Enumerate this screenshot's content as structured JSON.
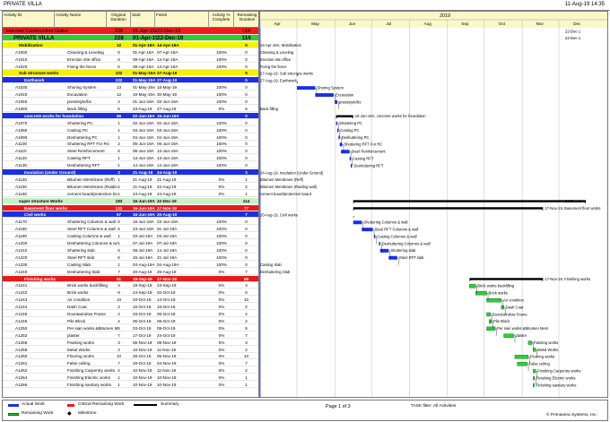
{
  "top_bar": {
    "title": "PRIVATE VILLA",
    "date": "11-Aug-19 14:35"
  },
  "columns": {
    "activity_id": "Activity ID",
    "activity_name": "Activity Name",
    "orig_dur": "Original Duration",
    "start": "Start",
    "finish": "Finish",
    "pct": "Activity % Complete",
    "rem": "Remaining Duration"
  },
  "timescale": {
    "year": "2019",
    "months": [
      "Apr",
      "May",
      "Jun",
      "Jul",
      "Aug",
      "Sep",
      "Oct",
      "Nov",
      "Dec"
    ]
  },
  "rows": [
    {
      "kind": "hdr-red",
      "id": "",
      "name": "Harvant Construction Dubai",
      "dur": "228",
      "start": "01-Apr-19A",
      "finish": "22-Dec-19",
      "pct": "",
      "rem": "114"
    },
    {
      "kind": "hdr-green",
      "id": "",
      "name": "PRIVATE VILLA",
      "dur": "228",
      "start": "01-Apr-19A",
      "finish": "22-Dec-19",
      "pct": "",
      "rem": "114"
    },
    {
      "kind": "hdr-yellow",
      "id": "",
      "name": "Mobilization",
      "dur": "12",
      "start": "01-Apr-19A",
      "finish": "14-Apr-19A",
      "pct": "",
      "rem": "0"
    },
    {
      "kind": "act",
      "id": "A1000",
      "name": "Cleaning & Leveling",
      "dur": "6",
      "start": "01-Apr-19A",
      "finish": "07-Apr-19A",
      "pct": "100%",
      "rem": "0"
    },
    {
      "kind": "act",
      "id": "A1010",
      "name": "Erection site office",
      "dur": "6",
      "start": "08-Apr-19A",
      "finish": "14-Apr-19A",
      "pct": "100%",
      "rem": "0"
    },
    {
      "kind": "act",
      "id": "A1020",
      "name": "Fixing the fence",
      "dur": "6",
      "start": "08-Apr-19A",
      "finish": "14-Apr-19A",
      "pct": "100%",
      "rem": "0"
    },
    {
      "kind": "hdr-yellow",
      "id": "",
      "name": "Sub structure works",
      "dur": "102",
      "start": "01-May-19A",
      "finish": "27-Aug-19",
      "pct": "",
      "rem": "5"
    },
    {
      "kind": "hdr-blue",
      "id": "",
      "name": "Earthwork",
      "dur": "102",
      "start": "01-May-19A",
      "finish": "27-Aug-19",
      "pct": "",
      "rem": "5"
    },
    {
      "kind": "act",
      "id": "A1030",
      "name": "Shoring System",
      "dur": "13",
      "start": "01-May-19A",
      "finish": "15-May-19",
      "pct": "100%",
      "rem": "0"
    },
    {
      "kind": "act",
      "id": "A1040",
      "name": "Excavation",
      "dur": "12",
      "start": "16-May-19A",
      "finish": "30-May-19",
      "pct": "100%",
      "rem": "0"
    },
    {
      "kind": "act",
      "id": "A1050",
      "name": "pressstyle/bs",
      "dur": "2",
      "start": "01-Jun-19A",
      "finish": "02-Jun-19A",
      "pct": "100%",
      "rem": "0"
    },
    {
      "kind": "act",
      "id": "A1060",
      "name": "Back filling",
      "dur": "5",
      "start": "23-Aug-19",
      "finish": "27-Aug-19",
      "pct": "0%",
      "rem": "5"
    },
    {
      "kind": "hdr-blue",
      "id": "",
      "name": "concrete works for foundation",
      "dur": "56",
      "start": "02-Jun-19A",
      "finish": "15-Jun-19A",
      "pct": "",
      "rem": "0"
    },
    {
      "kind": "act",
      "id": "A1070",
      "name": "Shuttering PC",
      "dur": "1",
      "start": "02-Jun-19A",
      "finish": "02-Jun-19A",
      "pct": "100%",
      "rem": "0"
    },
    {
      "kind": "act",
      "id": "A1080",
      "name": "Casting PC",
      "dur": "1",
      "start": "03-Jun-19A",
      "finish": "03-Jun-19A",
      "pct": "100%",
      "rem": "0"
    },
    {
      "kind": "act",
      "id": "A1090",
      "name": "Deshuttering PC",
      "dur": "1",
      "start": "04-Jun-19A",
      "finish": "04-Jun-19A",
      "pct": "100%",
      "rem": "0"
    },
    {
      "kind": "act",
      "id": "A1100",
      "name": "Shuttering RFT For RC",
      "dur": "2",
      "start": "05-Jun-19A",
      "finish": "06-Jun-19A",
      "pct": "100%",
      "rem": "0"
    },
    {
      "kind": "act",
      "id": "A1110",
      "name": "Steel Reinforcement",
      "dur": "6",
      "start": "06-Jun-19A",
      "finish": "12-Jun-19A",
      "pct": "100%",
      "rem": "0"
    },
    {
      "kind": "act",
      "id": "A1120",
      "name": "Casting RFT",
      "dur": "1",
      "start": "13-Jun-19A",
      "finish": "13-Jun-19A",
      "pct": "100%",
      "rem": "0"
    },
    {
      "kind": "act",
      "id": "A1130",
      "name": "Deshuttering RFT",
      "dur": "1",
      "start": "14-Jun-19A",
      "finish": "14-Jun-19A",
      "pct": "100%",
      "rem": "0"
    },
    {
      "kind": "hdr-blue",
      "id": "",
      "name": "Insulation (Under Ground)",
      "dur": "3",
      "start": "21-Aug-19",
      "finish": "24-Aug-19",
      "pct": "",
      "rem": "3"
    },
    {
      "kind": "act",
      "id": "A1140",
      "name": "Bitumen Membrane (Reff)",
      "dur": "1",
      "start": "21-Aug-19",
      "finish": "21-Aug-19",
      "pct": "0%",
      "rem": "1"
    },
    {
      "kind": "act",
      "id": "A1150",
      "name": "Bitumen Membrane (Raiding",
      "dur": "2",
      "start": "21-Aug-19",
      "finish": "22-Aug-19",
      "pct": "0%",
      "rem": "2"
    },
    {
      "kind": "act",
      "id": "A1160",
      "name": "cement board/protection boa",
      "dur": "1",
      "start": "24-Aug-19",
      "finish": "24-Aug-19",
      "pct": "0%",
      "rem": "1"
    },
    {
      "kind": "hdr-lgreen",
      "id": "",
      "name": "super structure Works",
      "dur": "183",
      "start": "16-Jun-19A",
      "finish": "22-Dec-19",
      "pct": "",
      "rem": "114"
    },
    {
      "kind": "hdr-red2",
      "id": "",
      "name": "Basement floor works",
      "dur": "133",
      "start": "16-Jun-19A",
      "finish": "17-Nov-19",
      "pct": "",
      "rem": "77"
    },
    {
      "kind": "hdr-blue",
      "id": "",
      "name": "Civil works",
      "dur": "57",
      "start": "16-Jun-19A",
      "finish": "20-Aug-19",
      "pct": "",
      "rem": "7"
    },
    {
      "kind": "act",
      "id": "A1170",
      "name": "Shuttering Columns & wall",
      "dur": "6",
      "start": "16-Jun-19A",
      "finish": "22-Jun-19A",
      "pct": "100%",
      "rem": "0"
    },
    {
      "kind": "act",
      "id": "A1180",
      "name": "Steel RFT Columns & wall",
      "dur": "6",
      "start": "23-Jun-19A",
      "finish": "01-Jul-19A",
      "pct": "100%",
      "rem": "0"
    },
    {
      "kind": "act",
      "id": "A1190",
      "name": "Casting Columns & wall",
      "dur": "1",
      "start": "03-Jul-19A",
      "finish": "03-Jul-19A",
      "pct": "100%",
      "rem": "0"
    },
    {
      "kind": "act",
      "id": "A1200",
      "name": "Deshuttering Columns & wall",
      "dur": "1",
      "start": "07-Jul-19A",
      "finish": "07-Jul-19A",
      "pct": "100%",
      "rem": "0"
    },
    {
      "kind": "act",
      "id": "A1210",
      "name": "Shuttering slab",
      "dur": "6",
      "start": "08-Jul-19A",
      "finish": "14-Jul-19A",
      "pct": "100%",
      "rem": "0"
    },
    {
      "kind": "act",
      "id": "A1220",
      "name": "Steel RFT slab",
      "dur": "6",
      "start": "15-Jul-19A",
      "finish": "21-Jul-19A",
      "pct": "100%",
      "rem": "0"
    },
    {
      "kind": "act",
      "id": "A1230",
      "name": "Casting Slab",
      "dur": "1",
      "start": "04-Aug-19A",
      "finish": "04-Aug-19A",
      "pct": "100%",
      "rem": "0"
    },
    {
      "kind": "act",
      "id": "A1240",
      "name": "Deshuttering Slab",
      "dur": "7",
      "start": "20-Aug-19",
      "finish": "26-Aug-19",
      "pct": "0%",
      "rem": "7"
    },
    {
      "kind": "hdr-red2",
      "id": "",
      "name": "Finishing works",
      "dur": "91",
      "start": "19-Sep-19",
      "finish": "17-Nov-19",
      "pct": "",
      "rem": "59"
    },
    {
      "kind": "act",
      "id": "A1241",
      "name": "Brick works backfilling",
      "dur": "4",
      "start": "19-Sep-19",
      "finish": "23-Sep-19",
      "pct": "0%",
      "rem": "4"
    },
    {
      "kind": "act",
      "id": "A1242",
      "name": "Brick works",
      "dur": "8",
      "start": "24-Sep-19",
      "finish": "02-Oct-19",
      "pct": "0%",
      "rem": "8"
    },
    {
      "kind": "act",
      "id": "A1243",
      "name": "Air condition",
      "dur": "10",
      "start": "03-Oct-19",
      "finish": "14-Oct-19",
      "pct": "0%",
      "rem": "10"
    },
    {
      "kind": "act",
      "id": "A1244",
      "name": "Dash Coat",
      "dur": "2",
      "start": "15-Oct-19",
      "finish": "16-Oct-19",
      "pct": "0%",
      "rem": "2"
    },
    {
      "kind": "act",
      "id": "A1245",
      "name": "Door&window Frame",
      "dur": "2",
      "start": "03-Oct-19",
      "finish": "05-Oct-19",
      "pct": "0%",
      "rem": "2"
    },
    {
      "kind": "act",
      "id": "A1246",
      "name": "Pile Block",
      "dur": "2",
      "start": "05-Oct-19",
      "finish": "06-Oct-19",
      "pct": "0%",
      "rem": "2"
    },
    {
      "kind": "act",
      "id": "A1250",
      "name": "Per sian works &Bitumen Mem",
      "dur": "6",
      "start": "03-Oct-19",
      "finish": "09-Oct-19",
      "pct": "0%",
      "rem": "6"
    },
    {
      "kind": "act",
      "id": "A1252",
      "name": "plaster",
      "dur": "7",
      "start": "17-Oct-19",
      "finish": "24-Oct-19",
      "pct": "0%",
      "rem": "7"
    },
    {
      "kind": "act",
      "id": "A1256",
      "name": "Painting works",
      "dur": "3",
      "start": "06-Nov-19",
      "finish": "08-Nov-19",
      "pct": "0%",
      "rem": "3"
    },
    {
      "kind": "act",
      "id": "A1258",
      "name": "Metal Works",
      "dur": "2",
      "start": "10-Nov-19",
      "finish": "11-Nov-19",
      "pct": "0%",
      "rem": "2"
    },
    {
      "kind": "act",
      "id": "A1260",
      "name": "Flooring works",
      "dur": "10",
      "start": "26-Oct-19",
      "finish": "05-Nov-19",
      "pct": "0%",
      "rem": "10"
    },
    {
      "kind": "act",
      "id": "A1261",
      "name": "False ceiling",
      "dur": "7",
      "start": "28-Oct-19",
      "finish": "04-Nov-19",
      "pct": "0%",
      "rem": "7"
    },
    {
      "kind": "act",
      "id": "A1262",
      "name": "Finishing Carpentry works",
      "dur": "2",
      "start": "10-Nov-19",
      "finish": "11-Nov-19",
      "pct": "0%",
      "rem": "2"
    },
    {
      "kind": "act",
      "id": "A1264",
      "name": "Finishing Electric works",
      "dur": "1",
      "start": "10-Nov-19",
      "finish": "10-Nov-19",
      "pct": "0%",
      "rem": "1"
    },
    {
      "kind": "act",
      "id": "A1266",
      "name": "Finishing sanitary works",
      "dur": "1",
      "start": "10-Nov-19",
      "finish": "10-Nov-19",
      "pct": "0%",
      "rem": "1"
    }
  ],
  "gantt_labels": [
    {
      "row": 0,
      "text": "22-Dec-1"
    },
    {
      "row": 1,
      "text": "22-Dec-1"
    },
    {
      "row": 2,
      "text": "14-Apr-19A, Mobilization"
    },
    {
      "row": 3,
      "text": "Cleaning & Leveling"
    },
    {
      "row": 4,
      "text": "Erection site office"
    },
    {
      "row": 5,
      "text": "Fixing the fence"
    },
    {
      "row": 6,
      "text": "27-Aug-19, Sub structure works"
    },
    {
      "row": 7,
      "text": "27-Aug-19, Earthwork"
    },
    {
      "row": 8,
      "text": "Shoring System"
    },
    {
      "row": 9,
      "text": "Excavation"
    },
    {
      "row": 10,
      "text": "pressstyle/bs"
    },
    {
      "row": 11,
      "text": "Back filling"
    },
    {
      "row": 12,
      "text": "15-Jun-19A, concrete works for foundation"
    },
    {
      "row": 13,
      "text": "Shuttering PC"
    },
    {
      "row": 14,
      "text": "Casting PC"
    },
    {
      "row": 15,
      "text": "Deshuttering PC"
    },
    {
      "row": 16,
      "text": "Shuttering RFT For RC"
    },
    {
      "row": 17,
      "text": "Steel Reinforcement"
    },
    {
      "row": 18,
      "text": "Casting RFT"
    },
    {
      "row": 19,
      "text": "Deshuttering RFT"
    },
    {
      "row": 20,
      "text": "24-Aug-19, Insulation (Under Ground)"
    },
    {
      "row": 21,
      "text": "Bitumen Membrane (Reff)"
    },
    {
      "row": 22,
      "text": "Bitumen Membrane (Raiding wall)"
    },
    {
      "row": 23,
      "text": "cement board/protection board"
    },
    {
      "row": 24,
      "text": "22-Dec-1"
    },
    {
      "row": 25,
      "text": "17-Nov-19, Basement floor works"
    },
    {
      "row": 26,
      "text": "20-Aug-19, Civil works"
    },
    {
      "row": 27,
      "text": "Shuttering Columns & wall"
    },
    {
      "row": 28,
      "text": "Steel RFT Columns & wall"
    },
    {
      "row": 29,
      "text": "Casting Columns & wall"
    },
    {
      "row": 30,
      "text": "Deshuttering Columns & wall"
    },
    {
      "row": 31,
      "text": "Shuttering slab"
    },
    {
      "row": 32,
      "text": "Steel RFT slab"
    },
    {
      "row": 33,
      "text": "Casting Slab"
    },
    {
      "row": 34,
      "text": "Deshuttering Slab"
    },
    {
      "row": 35,
      "text": "17-Nov-19, Finishing works"
    },
    {
      "row": 36,
      "text": "Brick works backfilling"
    },
    {
      "row": 37,
      "text": "Brick works"
    },
    {
      "row": 38,
      "text": "Air condition"
    },
    {
      "row": 39,
      "text": "Dash Coat"
    },
    {
      "row": 40,
      "text": "Door&window Frame"
    },
    {
      "row": 41,
      "text": "Pile Block"
    },
    {
      "row": 42,
      "text": "Per sian works &Bitumen Mem"
    },
    {
      "row": 43,
      "text": "plaster"
    },
    {
      "row": 44,
      "text": "Painting works"
    },
    {
      "row": 45,
      "text": "Metal Works"
    },
    {
      "row": 46,
      "text": "Flooring works"
    },
    {
      "row": 47,
      "text": "False ceiling"
    },
    {
      "row": 48,
      "text": "Finishing Carpentry works"
    },
    {
      "row": 49,
      "text": "Finishing Electric works"
    },
    {
      "row": 50,
      "text": "Finishing sanitary works"
    }
  ],
  "footer": {
    "actual_work": "Actual Work",
    "remaining_work": "Remaining Work",
    "critical": "Critical Remaining Work",
    "milestone": "Milestone",
    "summary": "Summary",
    "page": "Page 1 of 3",
    "task_filter": "TASK filter: All Activities",
    "copyright": "© Primavera Systems, Inc."
  },
  "colors": {
    "blue_bar": "#1a2fe6",
    "green_bar": "#33cc33",
    "red_bar": "#e81a1a",
    "summary": "#000000",
    "data_date": "#3344ff"
  }
}
